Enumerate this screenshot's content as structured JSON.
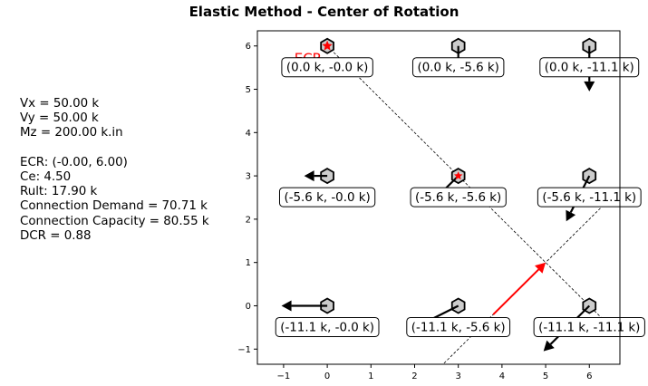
{
  "chart_data": {
    "type": "scatter",
    "title": "Elastic Method - Center of Rotation",
    "xlabel": "",
    "ylabel": "",
    "xlim": [
      -1.6,
      6.7
    ],
    "ylim": [
      -1.35,
      6.35
    ],
    "xticks": [
      -1,
      0,
      1,
      2,
      3,
      4,
      5,
      6
    ],
    "yticks": [
      -1,
      0,
      1,
      2,
      3,
      4,
      5,
      6
    ],
    "grid": false,
    "bolts": [
      {
        "x": 0,
        "y": 6,
        "label": "(0.0 k, -0.0 k)",
        "fx": 0.0,
        "fy": 0.0
      },
      {
        "x": 3,
        "y": 6,
        "label": "(0.0 k, -5.6 k)",
        "fx": 0.0,
        "fy": -5.6
      },
      {
        "x": 6,
        "y": 6,
        "label": "(0.0 k, -11.1 k)",
        "fx": 0.0,
        "fy": -11.1
      },
      {
        "x": 0,
        "y": 3,
        "label": "(-5.6 k, -0.0 k)",
        "fx": -5.6,
        "fy": 0.0
      },
      {
        "x": 3,
        "y": 3,
        "label": "(-5.6 k, -5.6 k)",
        "fx": -5.6,
        "fy": -5.6
      },
      {
        "x": 6,
        "y": 3,
        "label": "(-5.6 k, -11.1 k)",
        "fx": -5.6,
        "fy": -11.1
      },
      {
        "x": 0,
        "y": 0,
        "label": "(-11.1 k, -0.0 k)",
        "fx": -11.1,
        "fy": 0.0
      },
      {
        "x": 3,
        "y": 0,
        "label": "(-11.1 k, -5.6 k)",
        "fx": -11.1,
        "fy": -5.6
      },
      {
        "x": 6,
        "y": 0,
        "label": "(-11.1 k, -11.1 k)",
        "fx": -11.1,
        "fy": -11.1
      }
    ],
    "ecr": {
      "x": 0.0,
      "y": 6.0,
      "label": "ECR"
    },
    "centroid": {
      "x": 3.0,
      "y": 3.0
    },
    "load_vector": {
      "from": [
        3.8,
        -0.2
      ],
      "to": [
        5.0,
        1.0
      ]
    },
    "load_line": {
      "from": [
        2.6,
        -1.4
      ],
      "to": [
        6.7,
        2.7
      ]
    },
    "perpendicular_line": {
      "from": [
        0.0,
        6.0
      ],
      "to": [
        6.7,
        -0.7
      ]
    },
    "colors": {
      "bolt_fill": "#cccccc",
      "arrow": "#000000",
      "ecr": "#ff0000",
      "load_vector": "#ff0000"
    }
  },
  "info_lines": [
    "Vx = 50.00 k",
    "Vy = 50.00 k",
    "Mz = 200.00 k.in",
    "",
    "ECR: (-0.00, 6.00)",
    "Ce: 4.50",
    "Rult: 17.90 k",
    "Connection Demand = 70.71 k",
    "Connection Capacity = 80.55 k",
    "DCR = 0.88"
  ]
}
